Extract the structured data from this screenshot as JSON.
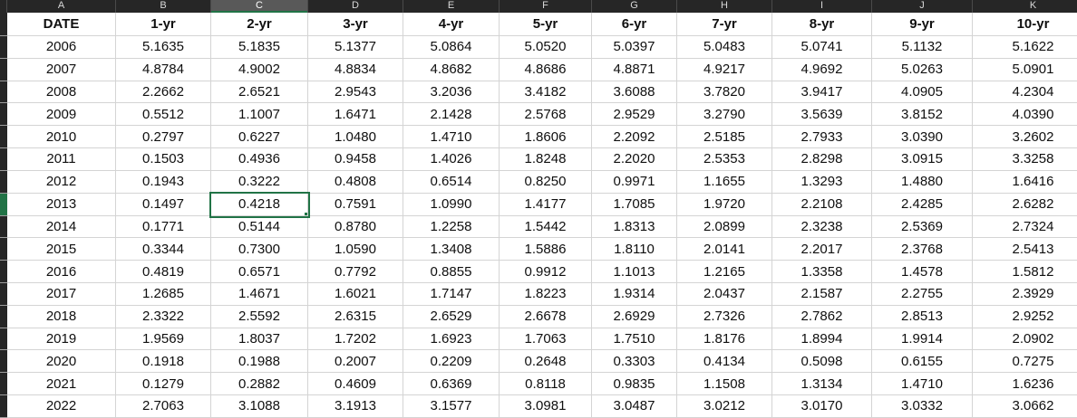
{
  "spreadsheet": {
    "column_letters": [
      "A",
      "B",
      "C",
      "D",
      "E",
      "F",
      "G",
      "H",
      "I",
      "J",
      "K"
    ],
    "selected_column_letter": "C",
    "selected_cell": {
      "row_year": "2013",
      "column": "2-yr",
      "value": "0.4218"
    },
    "table": {
      "headers": [
        "DATE",
        "1-yr",
        "2-yr",
        "3-yr",
        "4-yr",
        "5-yr",
        "6-yr",
        "7-yr",
        "8-yr",
        "9-yr",
        "10-yr"
      ],
      "rows": [
        [
          "2006",
          "5.1635",
          "5.1835",
          "5.1377",
          "5.0864",
          "5.0520",
          "5.0397",
          "5.0483",
          "5.0741",
          "5.1132",
          "5.1622"
        ],
        [
          "2007",
          "4.8784",
          "4.9002",
          "4.8834",
          "4.8682",
          "4.8686",
          "4.8871",
          "4.9217",
          "4.9692",
          "5.0263",
          "5.0901"
        ],
        [
          "2008",
          "2.2662",
          "2.6521",
          "2.9543",
          "3.2036",
          "3.4182",
          "3.6088",
          "3.7820",
          "3.9417",
          "4.0905",
          "4.2304"
        ],
        [
          "2009",
          "0.5512",
          "1.1007",
          "1.6471",
          "2.1428",
          "2.5768",
          "2.9529",
          "3.2790",
          "3.5639",
          "3.8152",
          "4.0390"
        ],
        [
          "2010",
          "0.2797",
          "0.6227",
          "1.0480",
          "1.4710",
          "1.8606",
          "2.2092",
          "2.5185",
          "2.7933",
          "3.0390",
          "3.2602"
        ],
        [
          "2011",
          "0.1503",
          "0.4936",
          "0.9458",
          "1.4026",
          "1.8248",
          "2.2020",
          "2.5353",
          "2.8298",
          "3.0915",
          "3.3258"
        ],
        [
          "2012",
          "0.1943",
          "0.3222",
          "0.4808",
          "0.6514",
          "0.8250",
          "0.9971",
          "1.1655",
          "1.3293",
          "1.4880",
          "1.6416"
        ],
        [
          "2013",
          "0.1497",
          "0.4218",
          "0.7591",
          "1.0990",
          "1.4177",
          "1.7085",
          "1.9720",
          "2.2108",
          "2.4285",
          "2.6282"
        ],
        [
          "2014",
          "0.1771",
          "0.5144",
          "0.8780",
          "1.2258",
          "1.5442",
          "1.8313",
          "2.0899",
          "2.3238",
          "2.5369",
          "2.7324"
        ],
        [
          "2015",
          "0.3344",
          "0.7300",
          "1.0590",
          "1.3408",
          "1.5886",
          "1.8110",
          "2.0141",
          "2.2017",
          "2.3768",
          "2.5413"
        ],
        [
          "2016",
          "0.4819",
          "0.6571",
          "0.7792",
          "0.8855",
          "0.9912",
          "1.1013",
          "1.2165",
          "1.3358",
          "1.4578",
          "1.5812"
        ],
        [
          "2017",
          "1.2685",
          "1.4671",
          "1.6021",
          "1.7147",
          "1.8223",
          "1.9314",
          "2.0437",
          "2.1587",
          "2.2755",
          "2.3929"
        ],
        [
          "2018",
          "2.3322",
          "2.5592",
          "2.6315",
          "2.6529",
          "2.6678",
          "2.6929",
          "2.7326",
          "2.7862",
          "2.8513",
          "2.9252"
        ],
        [
          "2019",
          "1.9569",
          "1.8037",
          "1.7202",
          "1.6923",
          "1.7063",
          "1.7510",
          "1.8176",
          "1.8994",
          "1.9914",
          "2.0902"
        ],
        [
          "2020",
          "0.1918",
          "0.1988",
          "0.2007",
          "0.2209",
          "0.2648",
          "0.3303",
          "0.4134",
          "0.5098",
          "0.6155",
          "0.7275"
        ],
        [
          "2021",
          "0.1279",
          "0.2882",
          "0.4609",
          "0.6369",
          "0.8118",
          "0.9835",
          "1.1508",
          "1.3134",
          "1.4710",
          "1.6236"
        ],
        [
          "2022",
          "2.7063",
          "3.1088",
          "3.1913",
          "3.1577",
          "3.0981",
          "3.0487",
          "3.0212",
          "3.0170",
          "3.0332",
          "3.0662"
        ]
      ]
    },
    "colors": {
      "selection_green": "#217346",
      "letter_strip_bg": "#262626",
      "letter_strip_selected_bg": "#595959",
      "gridline": "#d4d4d4",
      "cell_text": "#0f0f0f",
      "letter_text": "#d9d9d9"
    }
  }
}
